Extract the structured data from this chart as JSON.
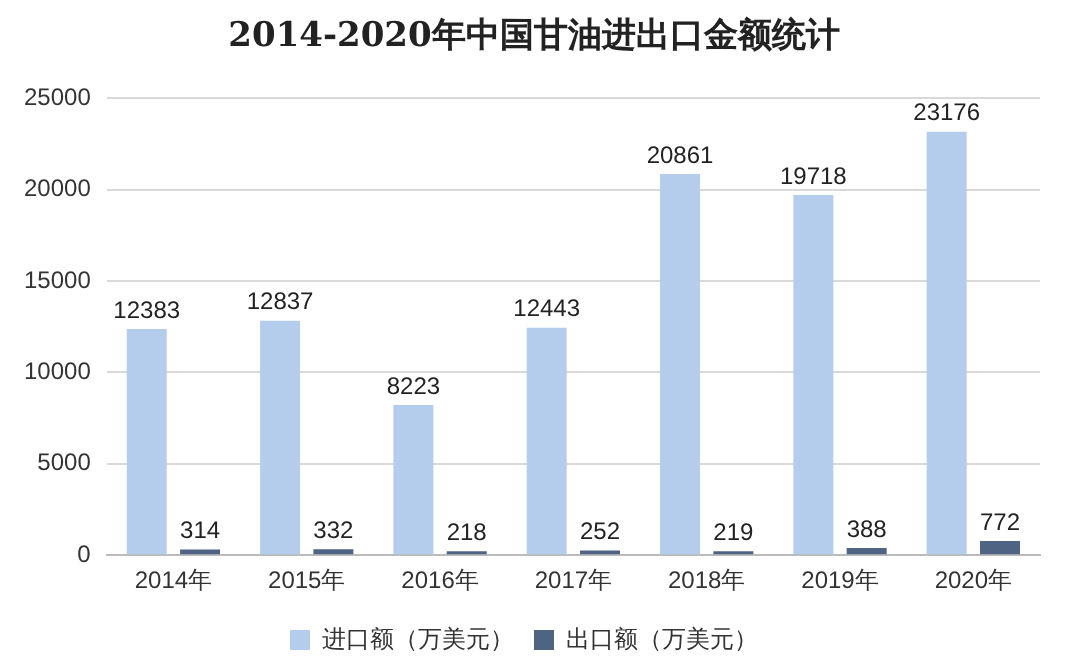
{
  "chart_data": {
    "type": "bar",
    "title": "2014-2020年中国甘油进出口金额统计",
    "categories": [
      "2014年",
      "2015年",
      "2016年",
      "2017年",
      "2018年",
      "2019年",
      "2020年"
    ],
    "series": [
      {
        "name": "进口额（万美元）",
        "color": "#b4cdec",
        "values": [
          12383,
          12837,
          8223,
          12443,
          20861,
          19718,
          23176
        ]
      },
      {
        "name": "出口额（万美元）",
        "color": "#4f6384",
        "values": [
          314,
          332,
          218,
          252,
          219,
          388,
          772
        ]
      }
    ],
    "ylim": [
      0,
      25000
    ],
    "yticks": [
      0,
      5000,
      10000,
      15000,
      20000,
      25000
    ],
    "grid": "y",
    "legend": "bottom",
    "data_labels": true
  }
}
